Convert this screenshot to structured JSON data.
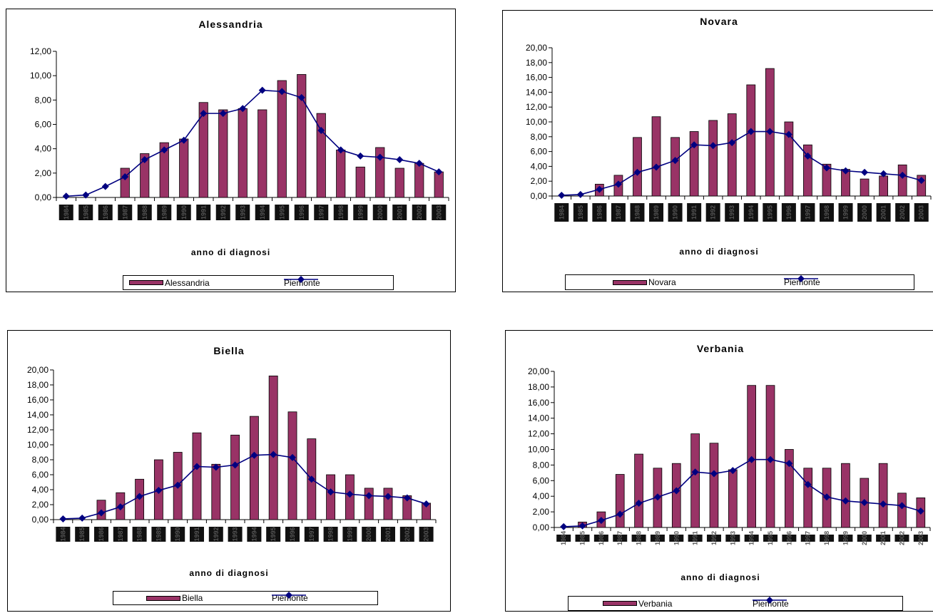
{
  "chart_data": [
    {
      "type": "bar",
      "title": "Alessandria",
      "xlabel": "anno di diagnosi",
      "ylabel": "",
      "ylim": [
        0,
        12
      ],
      "yticks": [
        "0,00",
        "2,00",
        "4,00",
        "6,00",
        "8,00",
        "10,00",
        "12,00"
      ],
      "legend": "bottom",
      "series": [
        {
          "name": "Alessandria",
          "kind": "bar",
          "color": "#993366",
          "values": [
            0,
            0,
            0,
            2.4,
            3.6,
            4.5,
            4.8,
            7.8,
            7.2,
            7.3,
            7.2,
            9.6,
            10.1,
            6.9,
            3.9,
            2.5,
            4.1,
            2.4,
            2.8,
            2.1
          ]
        },
        {
          "name": "Piemonte",
          "kind": "line",
          "color": "#000080",
          "values": [
            0.1,
            0.2,
            0.9,
            1.7,
            3.1,
            3.9,
            4.7,
            6.9,
            6.9,
            7.3,
            8.8,
            8.7,
            8.2,
            5.5,
            3.9,
            3.4,
            3.3,
            3.1,
            2.8,
            2.1
          ]
        }
      ]
    },
    {
      "type": "bar",
      "title": "Novara",
      "xlabel": "anno di diagnosi",
      "ylabel": "",
      "ylim": [
        0,
        20
      ],
      "yticks": [
        "0,00",
        "2,00",
        "4,00",
        "6,00",
        "8,00",
        "10,00",
        "12,00",
        "14,00",
        "16,00",
        "18,00",
        "20,00"
      ],
      "legend": "bottom",
      "series": [
        {
          "name": "Novara",
          "kind": "bar",
          "color": "#993366",
          "values": [
            0,
            0,
            1.6,
            2.8,
            7.9,
            10.7,
            7.9,
            8.7,
            10.2,
            11.1,
            15.0,
            17.2,
            10.0,
            6.9,
            4.3,
            3.6,
            2.3,
            2.7,
            4.2,
            2.8
          ]
        },
        {
          "name": "Piemonte",
          "kind": "line",
          "color": "#000080",
          "values": [
            0.1,
            0.2,
            0.9,
            1.6,
            3.2,
            3.9,
            4.8,
            6.9,
            6.8,
            7.2,
            8.7,
            8.7,
            8.3,
            5.4,
            3.8,
            3.4,
            3.2,
            3.0,
            2.8,
            2.1
          ]
        }
      ]
    },
    {
      "type": "bar",
      "title": "Biella",
      "xlabel": "anno di diagnosi",
      "ylabel": "",
      "ylim": [
        0,
        20
      ],
      "yticks": [
        "0,00",
        "2,00",
        "4,00",
        "6,00",
        "8,00",
        "10,00",
        "12,00",
        "14,00",
        "16,00",
        "18,00",
        "20,00"
      ],
      "legend": "bottom",
      "series": [
        {
          "name": "Biella",
          "kind": "bar",
          "color": "#993366",
          "values": [
            0,
            0,
            2.6,
            3.6,
            5.4,
            8.0,
            9.0,
            11.6,
            7.4,
            11.3,
            13.8,
            19.2,
            14.4,
            10.8,
            6.0,
            6.0,
            4.2,
            4.2,
            3.2,
            2.2
          ]
        },
        {
          "name": "Piemonte",
          "kind": "line",
          "color": "#000080",
          "values": [
            0.1,
            0.2,
            0.9,
            1.7,
            3.1,
            3.9,
            4.6,
            7.1,
            7.0,
            7.3,
            8.6,
            8.7,
            8.3,
            5.4,
            3.7,
            3.4,
            3.2,
            3.1,
            2.9,
            2.1
          ]
        }
      ]
    },
    {
      "type": "bar",
      "title": "Verbania",
      "xlabel": "anno di diagnosi",
      "ylabel": "",
      "ylim": [
        0,
        20
      ],
      "yticks": [
        "0,00",
        "2,00",
        "4,00",
        "6,00",
        "8,00",
        "10,00",
        "12,00",
        "14,00",
        "16,00",
        "18,00",
        "20,00"
      ],
      "legend": "bottom",
      "series": [
        {
          "name": "Verbania",
          "kind": "bar",
          "color": "#993366",
          "values": [
            0,
            0.7,
            2.0,
            6.8,
            9.4,
            7.6,
            8.2,
            12.0,
            10.8,
            7.4,
            18.2,
            18.2,
            10.0,
            7.6,
            7.6,
            8.2,
            6.3,
            8.2,
            4.4,
            3.8
          ]
        },
        {
          "name": "Piemonte",
          "kind": "line",
          "color": "#000080",
          "values": [
            0.1,
            0.2,
            0.9,
            1.7,
            3.1,
            3.9,
            4.7,
            7.1,
            6.9,
            7.3,
            8.7,
            8.7,
            8.2,
            5.5,
            3.9,
            3.4,
            3.2,
            3.0,
            2.8,
            2.1
          ]
        }
      ]
    }
  ],
  "x_categories": [
    "1984",
    "1985",
    "1986",
    "1987",
    "1988",
    "1989",
    "1990",
    "1991",
    "1992",
    "1993",
    "1994",
    "1995",
    "1996",
    "1997",
    "1998",
    "1999",
    "2000",
    "2001",
    "2002",
    "2003"
  ]
}
